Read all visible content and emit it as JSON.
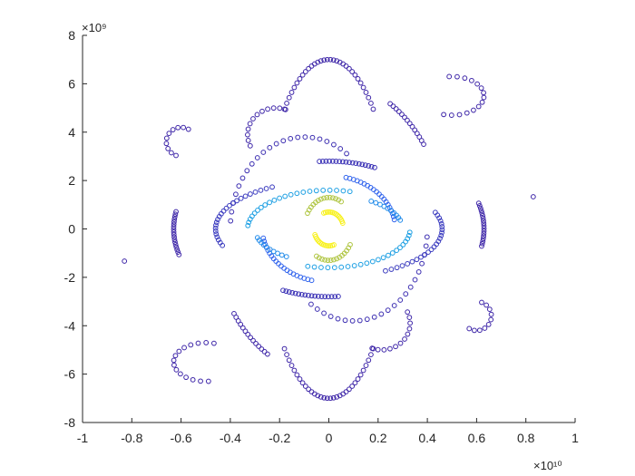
{
  "chart_data": {
    "type": "scatter",
    "title": "",
    "xlabel": "",
    "ylabel": "",
    "x_multiplier_label": "×10¹⁰",
    "y_multiplier_label": "×10⁹",
    "xlim": [
      -1,
      1
    ],
    "ylim": [
      -8,
      8
    ],
    "x_ticks": [
      -1,
      -0.8,
      -0.6,
      -0.4,
      -0.2,
      0,
      0.2,
      0.4,
      0.6,
      0.8,
      1
    ],
    "x_tick_labels": [
      "-1",
      "-0.8",
      "-0.6",
      "-0.4",
      "-0.2",
      "0",
      "0.2",
      "0.4",
      "0.6",
      "0.8",
      "1"
    ],
    "y_ticks": [
      -8,
      -6,
      -4,
      -2,
      0,
      2,
      4,
      6,
      8
    ],
    "y_tick_labels": [
      "-8",
      "-6",
      "-4",
      "-2",
      "0",
      "2",
      "4",
      "6",
      "8"
    ],
    "grid": false,
    "legend": "none",
    "marker": "open-circle",
    "colormap": "parula",
    "colormap_stops": [
      "#3e26a8",
      "#2f6bf5",
      "#17acdf",
      "#36c3a0",
      "#a9c541",
      "#f6c43d",
      "#f9fb15"
    ],
    "arcs": [
      {
        "cx": 0.0,
        "cy": 0.0,
        "a": 0.255,
        "b": 7.0,
        "t0": 45,
        "t1": 135,
        "n": 32,
        "c": 0.0
      },
      {
        "cx": 0.0,
        "cy": 0.0,
        "a": 0.255,
        "b": 7.0,
        "t0": 225,
        "t1": 315,
        "n": 32,
        "c": 0.0
      },
      {
        "cx": 0.0,
        "cy": 0.0,
        "a": 0.47,
        "b": 6.1,
        "t0": 35,
        "t1": 58,
        "n": 14,
        "c": 0.0
      },
      {
        "cx": 0.0,
        "cy": 0.0,
        "a": 0.47,
        "b": 6.1,
        "t0": 215,
        "t1": 238,
        "n": 14,
        "c": 0.0
      },
      {
        "cx": 0.0,
        "cy": 0.0,
        "a": 0.63,
        "b": 4.1,
        "t0": 170,
        "t1": 195,
        "n": 18,
        "c": 0.0
      },
      {
        "cx": 0.0,
        "cy": 0.0,
        "a": 0.63,
        "b": 4.1,
        "t0": 350,
        "t1": 375,
        "n": 18,
        "c": 0.0
      },
      {
        "cx": -0.215,
        "cy": 3.9,
        "a": 0.115,
        "b": 1.1,
        "t0": 70,
        "t1": 205,
        "n": 12,
        "c": 0.0
      },
      {
        "cx": 0.215,
        "cy": -3.9,
        "a": 0.115,
        "b": 1.1,
        "t0": 250,
        "t1": 385,
        "n": 12,
        "c": 0.0
      },
      {
        "cx": -0.6,
        "cy": 3.6,
        "a": 0.06,
        "b": 0.6,
        "t0": 60,
        "t1": 250,
        "n": 10,
        "c": 0.0
      },
      {
        "cx": 0.6,
        "cy": -3.6,
        "a": 0.06,
        "b": 0.6,
        "t0": 240,
        "t1": 430,
        "n": 10,
        "c": 0.0
      },
      {
        "cx": -0.5,
        "cy": -5.5,
        "a": 0.13,
        "b": 0.8,
        "t0": 75,
        "t1": 275,
        "n": 15,
        "c": 0.0
      },
      {
        "cx": 0.5,
        "cy": 5.5,
        "a": 0.13,
        "b": 0.8,
        "t0": 255,
        "t1": 455,
        "n": 15,
        "c": 0.0
      },
      {
        "cx": -0.1,
        "cy": 0.0,
        "a": 0.3,
        "b": 3.8,
        "t0": 55,
        "t1": 175,
        "n": 22,
        "c": 0.02
      },
      {
        "cx": 0.1,
        "cy": 0.0,
        "a": 0.3,
        "b": 3.8,
        "t0": 235,
        "t1": 355,
        "n": 22,
        "c": 0.02
      },
      {
        "cx": 0.0,
        "cy": 0.0,
        "a": 0.44,
        "b": 2.8,
        "t0": 65,
        "t1": 95,
        "n": 18,
        "c": 0.03
      },
      {
        "cx": 0.0,
        "cy": 0.0,
        "a": 0.44,
        "b": 2.8,
        "t0": 245,
        "t1": 275,
        "n": 18,
        "c": 0.03
      },
      {
        "cx": 0.0,
        "cy": 0.0,
        "a": 0.46,
        "b": 2.0,
        "t0": 120,
        "t1": 200,
        "n": 24,
        "c": 0.05
      },
      {
        "cx": 0.0,
        "cy": 0.0,
        "a": 0.46,
        "b": 2.0,
        "t0": 300,
        "t1": 380,
        "n": 24,
        "c": 0.05
      },
      {
        "cx": 0.0,
        "cy": 0.0,
        "a": 0.27,
        "b": 2.2,
        "t0": 10,
        "t1": 75,
        "n": 20,
        "c": 0.15
      },
      {
        "cx": 0.0,
        "cy": 0.0,
        "a": 0.27,
        "b": 2.2,
        "t0": 190,
        "t1": 255,
        "n": 20,
        "c": 0.15
      },
      {
        "cx": 0.0,
        "cy": 0.0,
        "a": 0.33,
        "b": 1.6,
        "t0": 75,
        "t1": 175,
        "n": 22,
        "c": 0.3
      },
      {
        "cx": 0.0,
        "cy": 0.0,
        "a": 0.33,
        "b": 1.6,
        "t0": 255,
        "t1": 355,
        "n": 22,
        "c": 0.3
      },
      {
        "cx": 0.0,
        "cy": 0.0,
        "a": 0.3,
        "b": 1.4,
        "t0": 15,
        "t1": 55,
        "n": 10,
        "c": 0.25
      },
      {
        "cx": 0.0,
        "cy": 0.0,
        "a": 0.3,
        "b": 1.4,
        "t0": 195,
        "t1": 235,
        "n": 10,
        "c": 0.25
      },
      {
        "cx": 0.0,
        "cy": 0.0,
        "a": 0.1,
        "b": 1.3,
        "t0": 60,
        "t1": 150,
        "n": 14,
        "c": 0.68
      },
      {
        "cx": 0.0,
        "cy": 0.0,
        "a": 0.1,
        "b": 1.3,
        "t0": 240,
        "t1": 330,
        "n": 14,
        "c": 0.68
      },
      {
        "cx": 0.0,
        "cy": 0.0,
        "a": 0.06,
        "b": 0.7,
        "t0": 20,
        "t1": 110,
        "n": 14,
        "c": 0.97
      },
      {
        "cx": 0.0,
        "cy": 0.0,
        "a": 0.06,
        "b": 0.7,
        "t0": 200,
        "t1": 290,
        "n": 14,
        "c": 0.97
      }
    ],
    "points": [
      {
        "x": -0.83,
        "y": -1.33,
        "c": 0.0
      },
      {
        "x": 0.83,
        "y": 1.33,
        "c": 0.0
      }
    ]
  }
}
